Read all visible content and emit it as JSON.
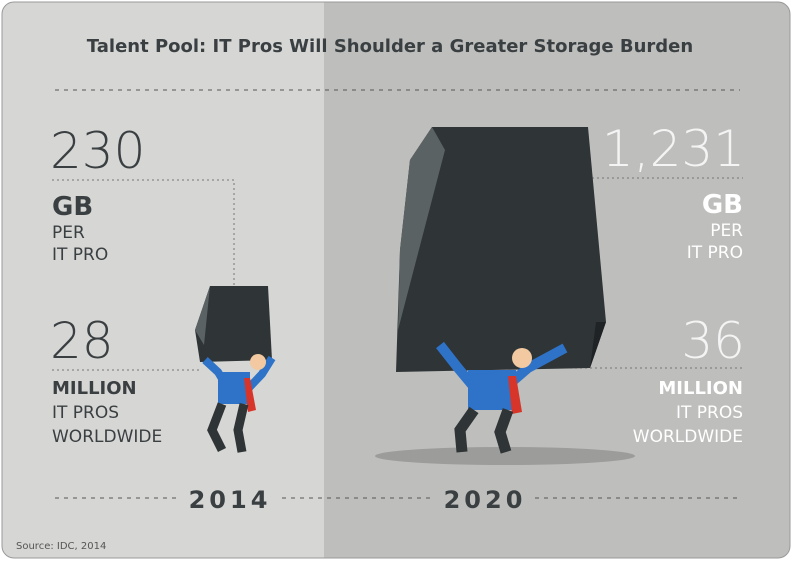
{
  "title": "Talent Pool: IT Pros Will Shoulder a Greater Storage Burden",
  "panels": [
    {
      "year": "2014",
      "storage": {
        "value": "230",
        "unit": "GB",
        "lines": [
          "PER",
          "IT PRO"
        ]
      },
      "pros": {
        "value": "28",
        "unit": "MILLION",
        "lines": [
          "IT PROS",
          "WORLDWIDE"
        ]
      }
    },
    {
      "year": "2020",
      "storage": {
        "value": "1,231",
        "unit": "GB",
        "lines": [
          "PER",
          "IT PRO"
        ]
      },
      "pros": {
        "value": "36",
        "unit": "MILLION",
        "lines": [
          "IT PROS",
          "WORLDWIDE"
        ]
      }
    }
  ],
  "source": "Source: IDC, 2014"
}
